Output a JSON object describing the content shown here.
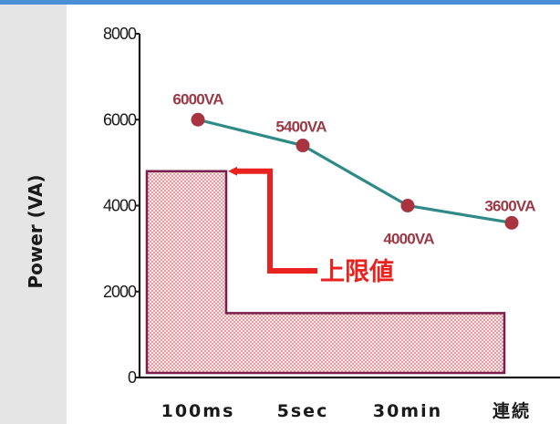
{
  "chart_data": {
    "type": "line",
    "title": "",
    "xlabel": "",
    "ylabel": "Power (VA)",
    "ylim": [
      0,
      8000
    ],
    "yticks": [
      "0",
      "2000",
      "4000",
      "6000",
      "8000"
    ],
    "categories": [
      "100ms",
      "5sec",
      "30min",
      "連続"
    ],
    "series": [
      {
        "values": [
          6000,
          5400,
          4000,
          3600
        ],
        "labels": [
          "6000VA",
          "5400VA",
          "4000VA",
          "3600VA"
        ]
      }
    ],
    "limit_region": {
      "lower_level": 1500,
      "upper_level": 4800
    },
    "annotation": "上限値",
    "colors": {
      "line": "#2e8a87",
      "marker": "#a83442",
      "data_label": "#9b3a46",
      "region_border": "#7a1f4d",
      "region_dots": "#d9666e",
      "arrow": "#e8231f",
      "left_band": "#e5e5e5",
      "top_bar": "#4a8ed6"
    }
  }
}
